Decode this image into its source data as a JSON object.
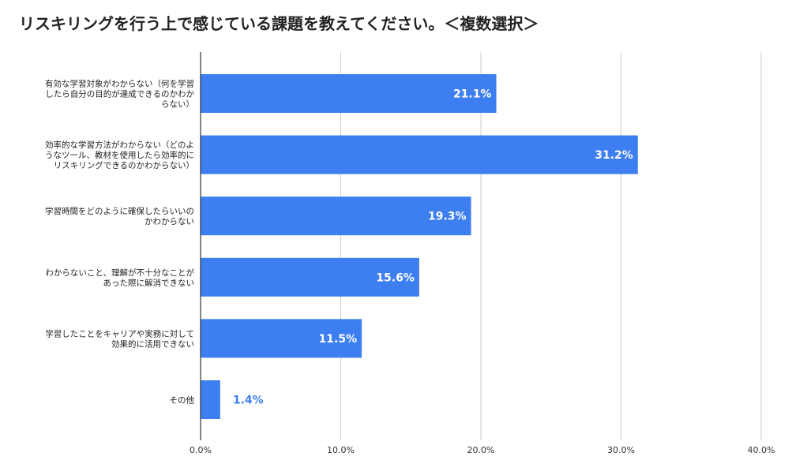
{
  "chart_data": {
    "type": "bar",
    "orientation": "horizontal",
    "title": "リスキリングを行う上で感じている課題を教えてください。＜複数選択＞",
    "categories": [
      [
        "有効な学習対象がわからない（何を学習",
        "したら自分の目的が達成できるのかわか",
        "らない）"
      ],
      [
        "効率的な学習方法がわからない（どのよ",
        "うなツール、教材を使用したら効率的に",
        "リスキリングできるのかわからない）"
      ],
      [
        "学習時間をどのように確保したらいいの",
        "かわからない"
      ],
      [
        "わからないこと、理解が不十分なことが",
        "あった際に解消できない"
      ],
      [
        "学習したことをキャリアや実務に対して",
        "効果的に活用できない"
      ],
      [
        "その他"
      ]
    ],
    "values": [
      21.1,
      31.2,
      19.3,
      15.6,
      11.5,
      1.4
    ],
    "value_labels": [
      "21.1%",
      "31.2%",
      "19.3%",
      "15.6%",
      "11.5%",
      "1.4%"
    ],
    "xlim": [
      0,
      40
    ],
    "x_ticks": [
      0,
      10,
      20,
      30,
      40
    ],
    "x_tick_labels": [
      "0.0%",
      "10.0%",
      "20.0%",
      "30.0%",
      "40.0%"
    ],
    "grid": true,
    "bar_color": "#3d7ef0",
    "grid_color": "#cccccc",
    "axis_color": "#333333",
    "label_inside_color": "#ffffff",
    "label_outside_color": "#3d7ef0"
  }
}
